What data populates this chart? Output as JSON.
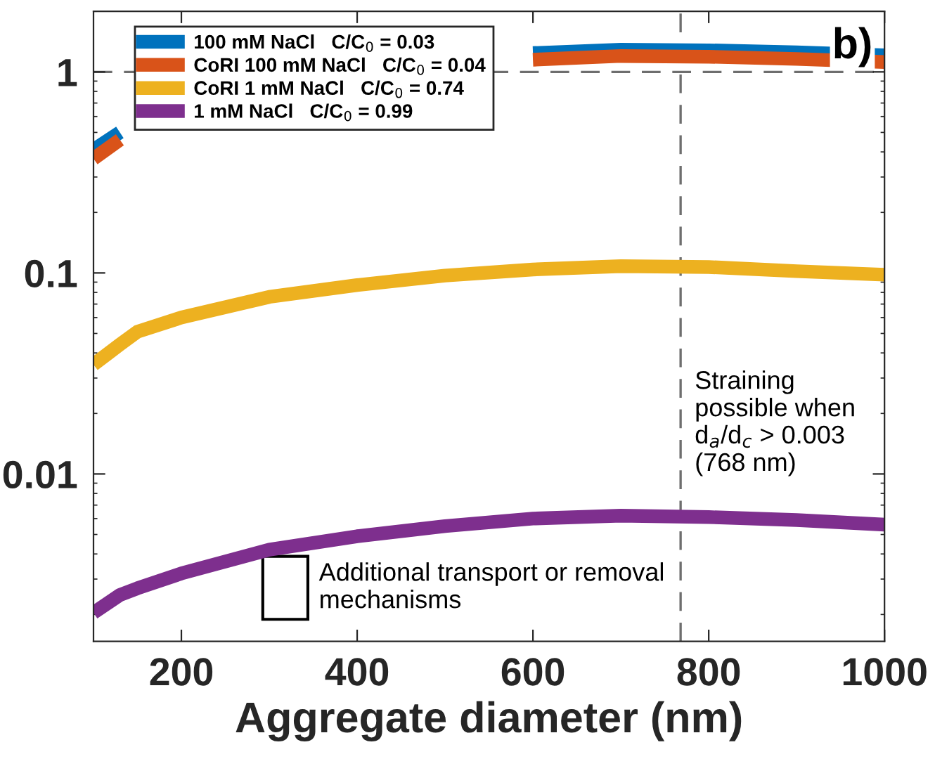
{
  "chart_data": {
    "type": "line",
    "xlabel": "Aggregate diameter (nm)",
    "x": [
      100,
      130,
      150,
      200,
      300,
      400,
      500,
      600,
      700,
      800,
      900,
      1000
    ],
    "series": [
      {
        "name": "100 mM NaCl   C/C$_{0}$ = 0.03",
        "color": "#0072bd",
        "values": [
          0.41,
          0.5,
          null,
          null,
          null,
          null,
          null,
          1.24,
          1.29,
          1.28,
          1.25,
          1.21
        ]
      },
      {
        "name": "CoRI 100 mM NaCl   C/C$_{0}$ = 0.04",
        "color": "#d95319",
        "values": [
          0.37,
          0.46,
          null,
          null,
          null,
          null,
          null,
          1.15,
          1.2,
          1.19,
          1.16,
          1.12
        ]
      },
      {
        "name": "CoRI 1 mM NaCl   C/C$_{0}$ = 0.74",
        "color": "#edb120",
        "values": [
          0.035,
          0.044,
          0.051,
          0.06,
          0.076,
          0.087,
          0.097,
          0.104,
          0.108,
          0.107,
          0.102,
          0.098
        ]
      },
      {
        "name": "1 mM NaCl   C/C$_{0}$ = 0.99",
        "color": "#7e2f8e",
        "values": [
          0.00204,
          0.0025,
          0.0027,
          0.0032,
          0.0042,
          0.0049,
          0.0055,
          0.006,
          0.0062,
          0.0061,
          0.0059,
          0.0056
        ]
      }
    ],
    "log": "y",
    "xlim": [
      100,
      1000
    ],
    "ylim": [
      0.00147,
      2.0
    ],
    "xticks": [
      200,
      400,
      600,
      800,
      1000
    ],
    "yticks": [
      0.01,
      0.1,
      1
    ],
    "ref_lines": [
      {
        "axis": "y",
        "value": 1,
        "label": null,
        "color": "#6e6e6e",
        "line_style": "dashed"
      },
      {
        "axis": "x",
        "value": 768,
        "label": "Straining\npossible when\nd$_{a}$/d$_{c}$ > 0.003\n(768 nm)",
        "color": "#6e6e6e",
        "line_style": "dashed"
      }
    ],
    "annotations": [
      "b)",
      "Additional transport or removal\nmechanisms"
    ],
    "legend": "top left",
    "grid": false,
    "line_style": "solid",
    "marker": "none"
  }
}
